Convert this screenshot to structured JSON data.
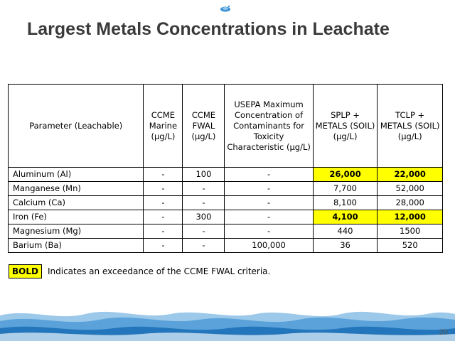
{
  "slide": {
    "title": "Largest Metals Concentrations in Leachate",
    "page_number": "20"
  },
  "table": {
    "headers": [
      "Parameter (Leachable)",
      "CCME Marine (μg/L)",
      "CCME FWAL (μg/L)",
      "USEPA Maximum Concentration of Contaminants for Toxicity Characteristic (μg/L)",
      "SPLP + METALS (SOIL) (μg/L)",
      "TCLP + METALS (SOIL) (μg/L)"
    ],
    "rows": [
      {
        "parameter": "Aluminum (Al)",
        "marine": "-",
        "fwal": "100",
        "usepa": "-",
        "splp": "26,000",
        "tclp": "22,000",
        "splp_exceeds": true,
        "tclp_exceeds": true
      },
      {
        "parameter": "Manganese (Mn)",
        "marine": "-",
        "fwal": "-",
        "usepa": "-",
        "splp": "7,700",
        "tclp": "52,000",
        "splp_exceeds": false,
        "tclp_exceeds": false
      },
      {
        "parameter": "Calcium (Ca)",
        "marine": "-",
        "fwal": "-",
        "usepa": "-",
        "splp": "8,100",
        "tclp": "28,000",
        "splp_exceeds": false,
        "tclp_exceeds": false
      },
      {
        "parameter": "Iron (Fe)",
        "marine": "-",
        "fwal": "300",
        "usepa": "-",
        "splp": "4,100",
        "tclp": "12,000",
        "splp_exceeds": true,
        "tclp_exceeds": true
      },
      {
        "parameter": "Magnesium (Mg)",
        "marine": "-",
        "fwal": "-",
        "usepa": "-",
        "splp": "440",
        "tclp": "1500",
        "splp_exceeds": false,
        "tclp_exceeds": false
      },
      {
        "parameter": "Barium (Ba)",
        "marine": "-",
        "fwal": "-",
        "usepa": "100,000",
        "splp": "36",
        "tclp": "520",
        "splp_exceeds": false,
        "tclp_exceeds": false
      }
    ]
  },
  "legend": {
    "key": "BOLD",
    "text": "Indicates an exceedance of the CCME FWAL criteria."
  },
  "colors": {
    "highlight": "#ffff00",
    "title": "#3a3a3a",
    "wave_dark": "#1a6fb5",
    "wave_light": "#9cc9ea"
  },
  "icons": {
    "top_logo": "water-splash-icon",
    "footer": "water-waves-decoration"
  }
}
